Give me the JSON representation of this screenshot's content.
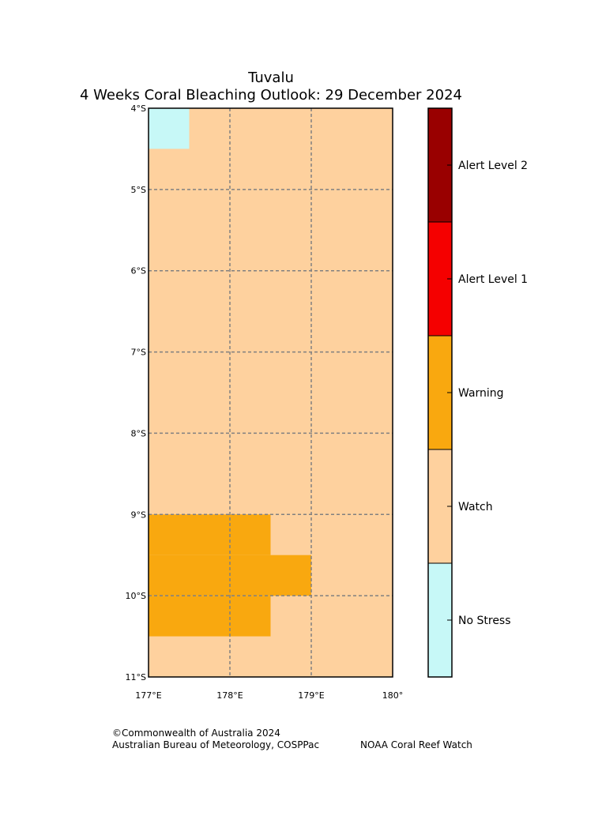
{
  "title": "Tuvalu",
  "subtitle": "4 Weeks Coral Bleaching Outlook: 29 December 2024",
  "map": {
    "lat_labels": [
      "4°S",
      "5°S",
      "6°S",
      "7°S",
      "8°S",
      "9°S",
      "10°S",
      "11°S"
    ],
    "lon_labels": [
      "177°E",
      "178°E",
      "179°E",
      "180°"
    ],
    "lat_range": [
      -11,
      -4
    ],
    "lon_range": [
      177,
      180
    ],
    "grid_resolution_deg": 0.5,
    "background_level": "Watch",
    "cells": [
      {
        "lat": [
          -4.5,
          -4.0
        ],
        "lon": [
          177.0,
          177.5
        ],
        "level": "No Stress"
      },
      {
        "lat": [
          -9.5,
          -9.0
        ],
        "lon": [
          177.0,
          178.5
        ],
        "level": "Warning"
      },
      {
        "lat": [
          -10.0,
          -9.5
        ],
        "lon": [
          177.0,
          179.0
        ],
        "level": "Warning"
      },
      {
        "lat": [
          -10.5,
          -10.0
        ],
        "lon": [
          177.0,
          178.5
        ],
        "level": "Warning"
      }
    ]
  },
  "legend": {
    "levels": [
      {
        "label": "Alert Level 2",
        "color": "#990000"
      },
      {
        "label": "Alert Level 1",
        "color": "#f50000"
      },
      {
        "label": "Warning",
        "color": "#f9a80f"
      },
      {
        "label": "Watch",
        "color": "#fed19e"
      },
      {
        "label": "No Stress",
        "color": "#c7f8f7"
      }
    ]
  },
  "footer": {
    "copyright": "©Commonwealth of Australia 2024",
    "agencies": "Australian Bureau of Meteorology, COSPPac",
    "partner": "NOAA Coral Reef Watch"
  }
}
